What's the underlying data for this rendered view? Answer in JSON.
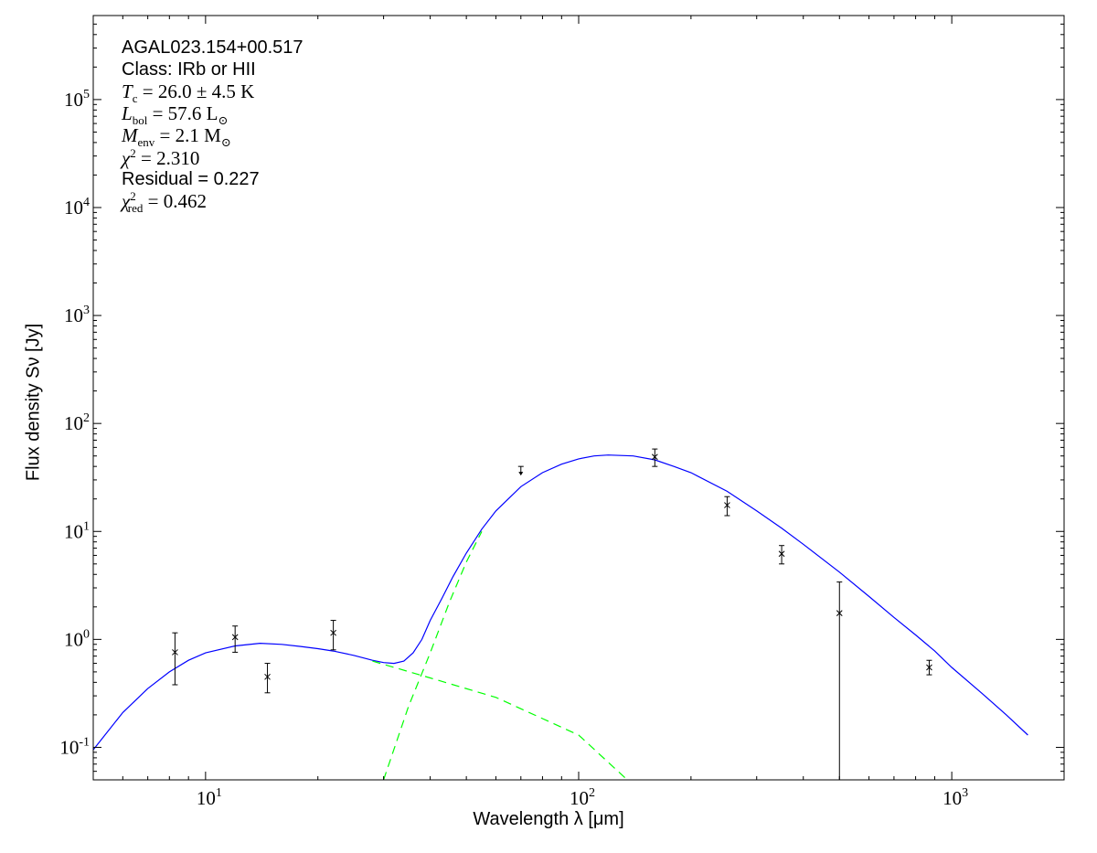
{
  "chart_data": {
    "type": "scatter",
    "xlabel": "Wavelength λ [μm]",
    "ylabel": "Flux density Sν [Jy]",
    "x_scale": "log",
    "y_scale": "log",
    "xlim": [
      5,
      2000
    ],
    "ylim": [
      0.05,
      600000
    ],
    "grid": false,
    "x_ticks": [
      10,
      100,
      1000
    ],
    "x_tick_labels": [
      "10^1",
      "10^2",
      "10^3"
    ],
    "y_ticks": [
      0.1,
      1,
      10,
      100,
      1000,
      10000,
      100000
    ],
    "y_tick_labels": [
      "10^-1",
      "10^0",
      "10^1",
      "10^2",
      "10^3",
      "10^4",
      "10^5"
    ],
    "annotation": {
      "source": "AGAL023.154+00.517",
      "class_label": "Class: IRb or HII",
      "Tc": "T_c = 26.0 ± 4.5 K",
      "Tc_value": "26.0 ± 4.5",
      "Lbol": "L_bol = 57.6 L_⊙",
      "Lbol_value": "57.6",
      "Menv": "M_env = 2.1 M_⊙",
      "Menv_value": "2.1",
      "chi2": "χ² = 2.310",
      "chi2_value": "2.310",
      "residual": "Residual = 0.227",
      "chi2_red": "χ²_red = 0.462",
      "chi2_red_value": "0.462"
    },
    "data_points": [
      {
        "x": 8.28,
        "y": 0.76,
        "yerr_low": 0.38,
        "yerr_high": 1.15
      },
      {
        "x": 12.0,
        "y": 1.05,
        "yerr_low": 0.76,
        "yerr_high": 1.33
      },
      {
        "x": 14.65,
        "y": 0.45,
        "yerr_low": 0.32,
        "yerr_high": 0.6
      },
      {
        "x": 22.0,
        "y": 1.15,
        "yerr_low": 0.8,
        "yerr_high": 1.5
      },
      {
        "x": 160,
        "y": 49,
        "yerr_low": 40,
        "yerr_high": 58
      },
      {
        "x": 250,
        "y": 17.5,
        "yerr_low": 14,
        "yerr_high": 21
      },
      {
        "x": 350,
        "y": 6.2,
        "yerr_low": 5.0,
        "yerr_high": 7.4
      },
      {
        "x": 500,
        "y": 1.75,
        "yerr_low": 0.05,
        "yerr_high": 3.4
      },
      {
        "x": 870,
        "y": 0.55,
        "yerr_low": 0.47,
        "yerr_high": 0.64
      }
    ],
    "upper_limits": [
      {
        "x": 70,
        "y": 40
      }
    ],
    "series": [
      {
        "color": "#0000ff",
        "style": "solid",
        "x": [
          5,
          6,
          7,
          8,
          9,
          10,
          12,
          14,
          16,
          18,
          20,
          22,
          25,
          28,
          30,
          32,
          34,
          36,
          38,
          40,
          43,
          46,
          50,
          55,
          60,
          70,
          80,
          90,
          100,
          110,
          120,
          140,
          160,
          180,
          200,
          250,
          300,
          350,
          400,
          500,
          600,
          700,
          800,
          900,
          1000,
          1200,
          1400,
          1600
        ],
        "y": [
          0.095,
          0.21,
          0.35,
          0.5,
          0.64,
          0.75,
          0.87,
          0.92,
          0.9,
          0.86,
          0.82,
          0.78,
          0.71,
          0.64,
          0.61,
          0.6,
          0.63,
          0.75,
          1.0,
          1.5,
          2.4,
          3.8,
          6.3,
          10.5,
          15.5,
          26,
          35,
          42,
          47,
          50,
          51,
          50,
          46,
          40,
          35,
          23.5,
          15.5,
          10.7,
          7.6,
          4.2,
          2.5,
          1.6,
          1.1,
          0.78,
          0.55,
          0.32,
          0.2,
          0.13
        ]
      },
      {
        "color": "#00ff00",
        "style": "dashed",
        "x": [
          28,
          40,
          60,
          100,
          135
        ],
        "y": [
          0.63,
          0.44,
          0.29,
          0.13,
          0.05
        ]
      },
      {
        "color": "#00ff00",
        "style": "dashed",
        "x": [
          30,
          35,
          40,
          45,
          50,
          55
        ],
        "y": [
          0.05,
          0.24,
          0.75,
          2.2,
          5.2,
          10
        ]
      }
    ]
  }
}
